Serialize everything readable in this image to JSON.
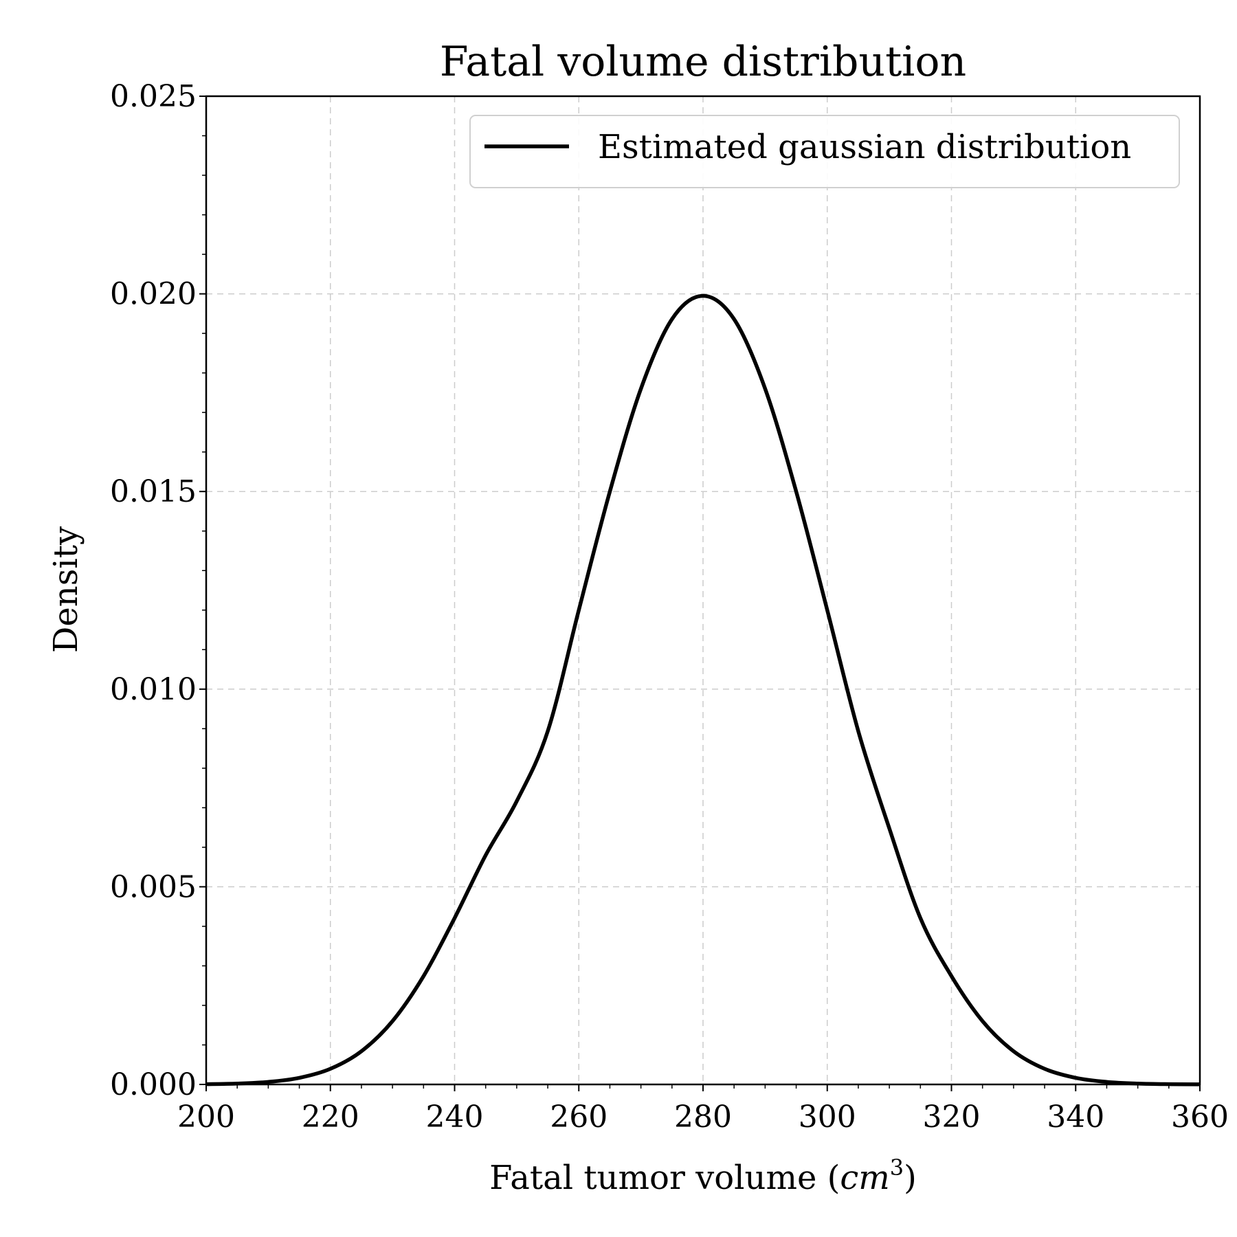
{
  "chart_data": {
    "type": "line",
    "title": "Fatal volume distribution",
    "xlabel": "Fatal tumor volume (",
    "xlabel_unit_base": "cm",
    "xlabel_unit_exp": "3",
    "xlabel_suffix": ")",
    "ylabel": "Density",
    "xlim": [
      200,
      360
    ],
    "ylim": [
      0,
      0.025
    ],
    "xticks": [
      "200",
      "220",
      "240",
      "260",
      "280",
      "300",
      "320",
      "340",
      "360"
    ],
    "yticks": [
      "0.000",
      "0.005",
      "0.010",
      "0.015",
      "0.020",
      "0.025"
    ],
    "grid": true,
    "legend_position": "top-right",
    "series": [
      {
        "name": "Estimated gaussian distribution",
        "color": "#000000",
        "x": [
          200,
          205,
          210,
          215,
          220,
          225,
          230,
          235,
          240,
          245,
          250,
          255,
          260,
          265,
          270,
          275,
          280,
          285,
          290,
          295,
          300,
          305,
          310,
          315,
          320,
          325,
          330,
          335,
          340,
          345,
          350,
          355,
          360
        ],
        "y": [
          6.7e-06,
          2.18e-05,
          6.37e-05,
          0.0001671,
          0.000395,
          0.00084,
          0.001602,
          0.00274,
          0.004208,
          0.005798,
          0.007165,
          0.008937,
          0.012,
          0.015,
          0.0176,
          0.01936,
          0.01995,
          0.01936,
          0.0176,
          0.015,
          0.012,
          0.008937,
          0.006475,
          0.004208,
          0.00274,
          0.001602,
          0.00084,
          0.000395,
          0.0001671,
          6.37e-05,
          2.18e-05,
          6.7e-06,
          1.8e-06
        ]
      }
    ]
  }
}
